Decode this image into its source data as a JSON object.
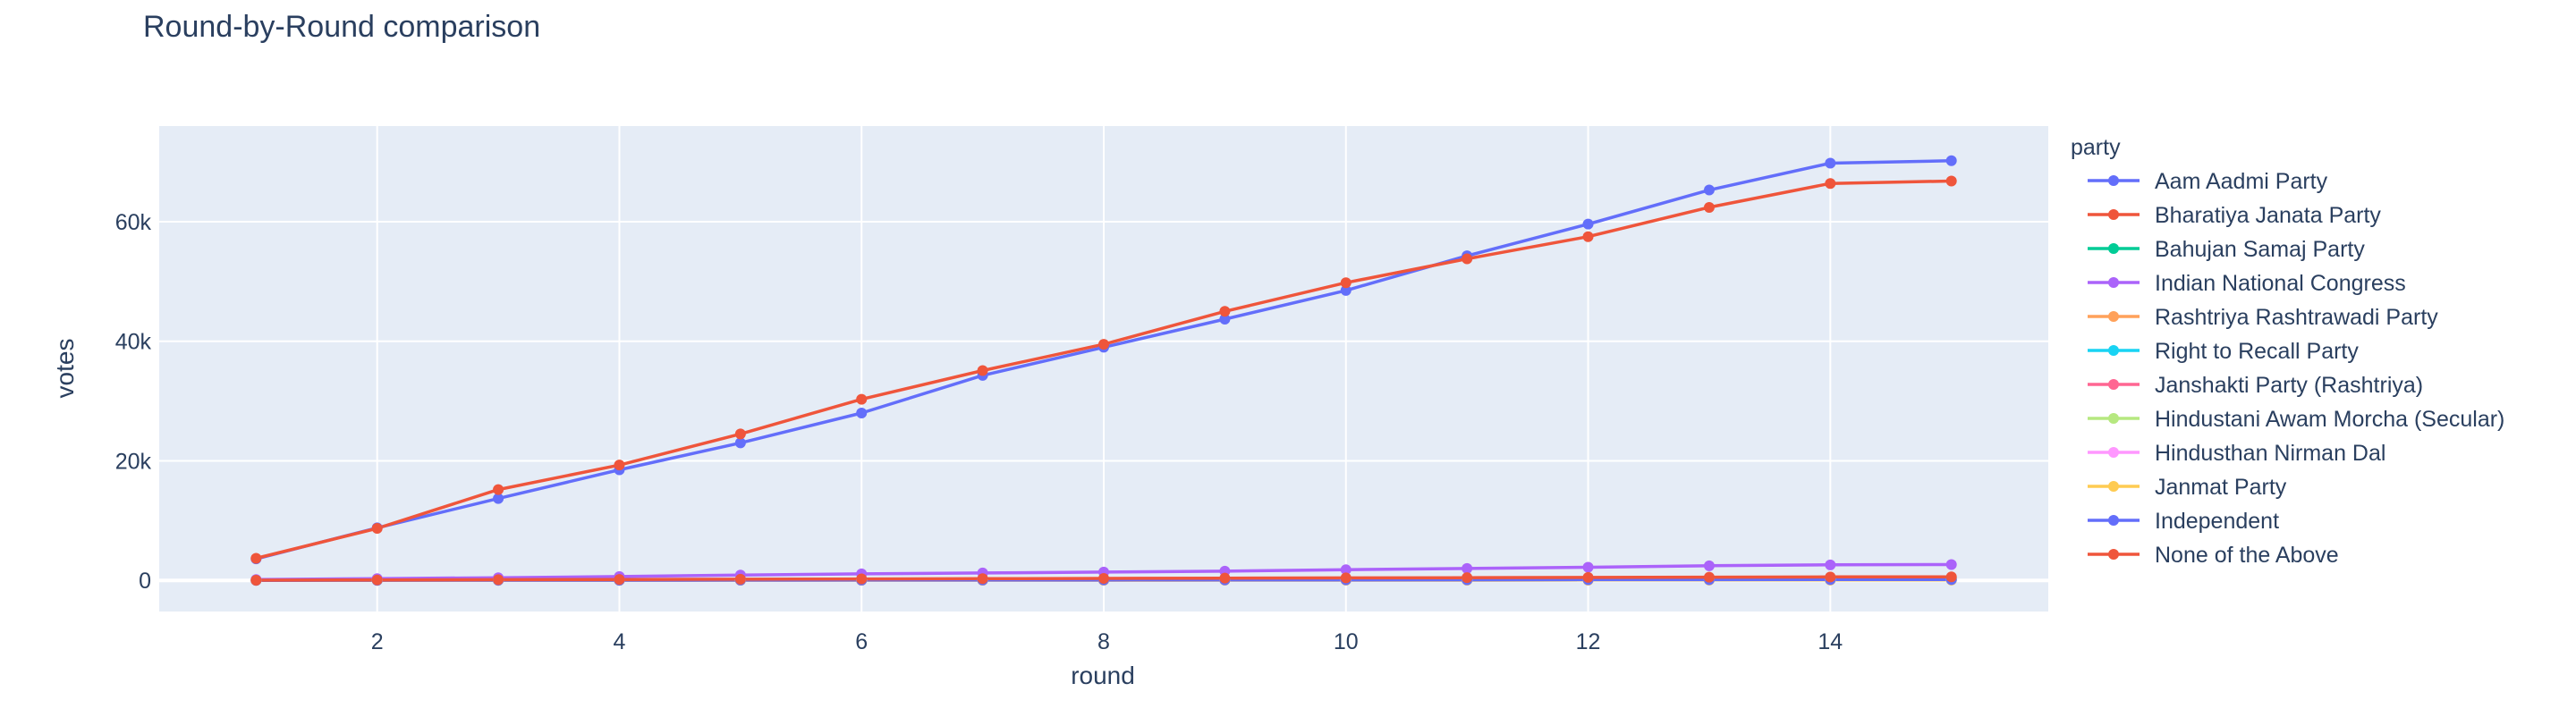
{
  "chart_data": {
    "type": "line",
    "title": "Round-by-Round comparison",
    "xlabel": "round",
    "ylabel": "votes",
    "xlim": [
      0.2,
      15.8
    ],
    "ylim": [
      -5200,
      76000
    ],
    "x_ticks": [
      2,
      4,
      6,
      8,
      10,
      12,
      14
    ],
    "x_tick_labels": [
      "2",
      "4",
      "6",
      "8",
      "10",
      "12",
      "14"
    ],
    "y_ticks": [
      0,
      20000,
      40000,
      60000
    ],
    "y_tick_labels": [
      "0",
      "20k",
      "40k",
      "60k"
    ],
    "grid": true,
    "legend_title": "party",
    "legend_position": "right",
    "x": [
      1,
      2,
      3,
      4,
      5,
      6,
      7,
      8,
      9,
      10,
      11,
      12,
      13,
      14,
      15
    ],
    "series": [
      {
        "name": "Aam Aadmi Party",
        "color": "#636efa",
        "values": [
          3600,
          8800,
          13700,
          18500,
          23000,
          28000,
          34300,
          39000,
          43700,
          48500,
          54300,
          59600,
          65300,
          69800,
          70200
        ]
      },
      {
        "name": "Bharatiya Janata Party",
        "color": "#EF553B",
        "values": [
          3700,
          8700,
          15200,
          19300,
          24500,
          30300,
          35100,
          39500,
          45000,
          49800,
          53800,
          57500,
          62400,
          66400,
          66800
        ]
      },
      {
        "name": "Bahujan Samaj Party",
        "color": "#00cc96",
        "values": [
          30,
          60,
          90,
          120,
          150,
          180,
          210,
          240,
          270,
          300,
          330,
          360,
          390,
          420,
          430
        ]
      },
      {
        "name": "Indian National Congress",
        "color": "#ab63fa",
        "values": [
          150,
          300,
          450,
          650,
          900,
          1100,
          1250,
          1400,
          1550,
          1800,
          2000,
          2200,
          2450,
          2600,
          2650
        ]
      },
      {
        "name": "Rashtriya Rashtrawadi Party",
        "color": "#FFA15A",
        "values": [
          10,
          20,
          30,
          40,
          50,
          60,
          70,
          80,
          90,
          100,
          110,
          120,
          130,
          140,
          145
        ]
      },
      {
        "name": "Right to Recall Party",
        "color": "#19d3f3",
        "values": [
          5,
          10,
          15,
          20,
          25,
          30,
          35,
          40,
          45,
          50,
          55,
          60,
          65,
          70,
          72
        ]
      },
      {
        "name": "Janshakti Party (Rashtriya)",
        "color": "#FF6692",
        "values": [
          5,
          10,
          15,
          20,
          25,
          30,
          35,
          40,
          45,
          50,
          55,
          60,
          65,
          70,
          72
        ]
      },
      {
        "name": "Hindustani Awam Morcha (Secular)",
        "color": "#B6E880",
        "values": [
          5,
          10,
          15,
          20,
          25,
          30,
          35,
          40,
          45,
          50,
          55,
          60,
          65,
          70,
          72
        ]
      },
      {
        "name": "Hindusthan Nirman Dal",
        "color": "#FF97FF",
        "values": [
          5,
          10,
          15,
          20,
          25,
          30,
          35,
          40,
          45,
          50,
          55,
          60,
          65,
          70,
          72
        ]
      },
      {
        "name": "Janmat Party",
        "color": "#FECB52",
        "values": [
          5,
          10,
          15,
          20,
          25,
          30,
          35,
          40,
          45,
          50,
          55,
          60,
          65,
          70,
          72
        ]
      },
      {
        "name": "Independent",
        "color": "#636efa",
        "values": [
          10,
          20,
          30,
          40,
          50,
          60,
          70,
          80,
          90,
          100,
          110,
          120,
          130,
          140,
          145
        ]
      },
      {
        "name": "None of the Above",
        "color": "#EF553B",
        "values": [
          40,
          80,
          120,
          160,
          200,
          250,
          290,
          330,
          380,
          420,
          460,
          500,
          540,
          580,
          600
        ]
      }
    ]
  }
}
